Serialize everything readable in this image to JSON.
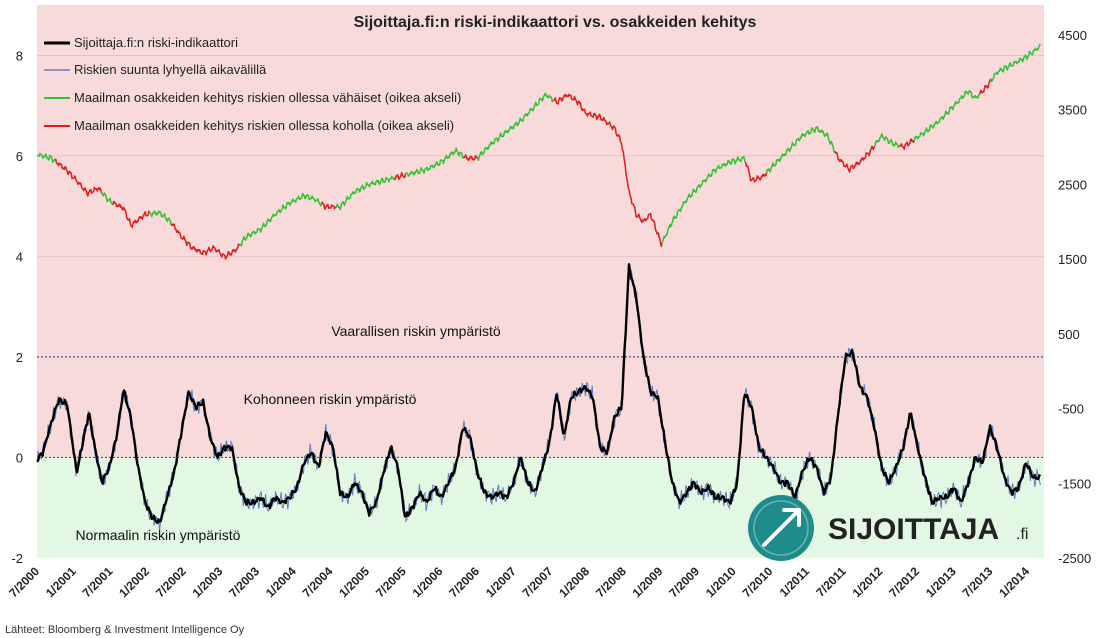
{
  "chart_data": {
    "type": "line",
    "title": "Sijoittaja.fi:n riski-indikaattori  vs. osakkeiden kehitys",
    "left_axis": {
      "ticks": [
        "8",
        "6",
        "4",
        "2",
        "0",
        "-2"
      ],
      "ylim": [
        -2,
        9
      ]
    },
    "right_axis": {
      "ticks": [
        "4500",
        "3500",
        "2500",
        "1500",
        "500",
        "-500",
        "-1500",
        "-2500"
      ],
      "ylim": [
        -2500,
        4900
      ]
    },
    "x_ticks": [
      "7/2000",
      "1/2001",
      "7/2001",
      "1/2002",
      "7/2002",
      "1/2003",
      "7/2003",
      "1/2004",
      "7/2004",
      "1/2005",
      "7/2005",
      "1/2006",
      "7/2006",
      "1/2007",
      "7/2007",
      "1/2008",
      "7/2008",
      "1/2009",
      "7/2009",
      "1/2010",
      "7/2010",
      "1/2011",
      "7/2011",
      "1/2012",
      "7/2012",
      "1/2013",
      "7/2013",
      "1/2014"
    ],
    "x_range": [
      2000.5,
      2014.45
    ],
    "danger_threshold": 2,
    "zero_line": 0,
    "legend": [
      {
        "label": "Sijoittaja.fi:n riski-indikaattori",
        "color": "#000000"
      },
      {
        "label": "Riskien suunta lyhyellä aikavälillä",
        "color": "#5a7fc0"
      },
      {
        "label": "Maailman osakkeiden kehitys riskien ollessa vähäiset (oikea akseli)",
        "color": "#33c233"
      },
      {
        "label": "Maailman osakkeiden kehitys riskien ollessa koholla (oikea akseli)",
        "color": "#e31b1b"
      }
    ],
    "annotations": {
      "danger": "Vaarallisen riskin ympäristö",
      "elevated": "Kohonneen riskin ympäristö",
      "normal": "Normaalin riskin ympäristö"
    },
    "series": [
      {
        "name": "Sijoittaja.fi:n riski-indikaattori",
        "axis": "left",
        "points": [
          [
            2000.5,
            -0.05
          ],
          [
            2000.58,
            0.1
          ],
          [
            2000.7,
            0.7
          ],
          [
            2000.8,
            1.15
          ],
          [
            2000.92,
            1.05
          ],
          [
            2001.0,
            0.2
          ],
          [
            2001.05,
            -0.3
          ],
          [
            2001.12,
            0.2
          ],
          [
            2001.22,
            0.9
          ],
          [
            2001.3,
            0.2
          ],
          [
            2001.4,
            -0.5
          ],
          [
            2001.5,
            -0.2
          ],
          [
            2001.6,
            0.4
          ],
          [
            2001.7,
            1.35
          ],
          [
            2001.8,
            0.8
          ],
          [
            2001.9,
            -0.2
          ],
          [
            2002.0,
            -0.9
          ],
          [
            2002.1,
            -1.2
          ],
          [
            2002.2,
            -1.3
          ],
          [
            2002.3,
            -0.8
          ],
          [
            2002.4,
            -0.3
          ],
          [
            2002.5,
            0.5
          ],
          [
            2002.6,
            1.3
          ],
          [
            2002.7,
            1.0
          ],
          [
            2002.8,
            1.1
          ],
          [
            2002.9,
            0.4
          ],
          [
            2003.0,
            0.0
          ],
          [
            2003.1,
            0.2
          ],
          [
            2003.2,
            0.2
          ],
          [
            2003.3,
            -0.6
          ],
          [
            2003.4,
            -0.9
          ],
          [
            2003.5,
            -0.9
          ],
          [
            2003.6,
            -0.8
          ],
          [
            2003.7,
            -1.0
          ],
          [
            2003.8,
            -0.8
          ],
          [
            2003.9,
            -0.9
          ],
          [
            2004.0,
            -0.8
          ],
          [
            2004.1,
            -0.6
          ],
          [
            2004.2,
            -0.1
          ],
          [
            2004.3,
            0.1
          ],
          [
            2004.4,
            -0.2
          ],
          [
            2004.5,
            0.5
          ],
          [
            2004.6,
            0.2
          ],
          [
            2004.7,
            -0.7
          ],
          [
            2004.8,
            -0.8
          ],
          [
            2004.9,
            -0.5
          ],
          [
            2005.0,
            -0.7
          ],
          [
            2005.1,
            -1.1
          ],
          [
            2005.2,
            -0.9
          ],
          [
            2005.3,
            -0.3
          ],
          [
            2005.4,
            0.2
          ],
          [
            2005.5,
            -0.2
          ],
          [
            2005.6,
            -1.2
          ],
          [
            2005.7,
            -1.0
          ],
          [
            2005.8,
            -0.7
          ],
          [
            2005.9,
            -0.9
          ],
          [
            2006.0,
            -0.6
          ],
          [
            2006.1,
            -0.8
          ],
          [
            2006.2,
            -0.5
          ],
          [
            2006.3,
            -0.2
          ],
          [
            2006.4,
            0.6
          ],
          [
            2006.5,
            0.4
          ],
          [
            2006.6,
            -0.3
          ],
          [
            2006.7,
            -0.7
          ],
          [
            2006.8,
            -0.8
          ],
          [
            2006.9,
            -0.7
          ],
          [
            2007.0,
            -0.8
          ],
          [
            2007.1,
            -0.5
          ],
          [
            2007.2,
            0.0
          ],
          [
            2007.3,
            -0.5
          ],
          [
            2007.4,
            -0.7
          ],
          [
            2007.5,
            -0.2
          ],
          [
            2007.6,
            0.3
          ],
          [
            2007.7,
            1.3
          ],
          [
            2007.8,
            0.4
          ],
          [
            2007.9,
            1.2
          ],
          [
            2008.0,
            1.3
          ],
          [
            2008.1,
            1.4
          ],
          [
            2008.2,
            1.2
          ],
          [
            2008.3,
            0.2
          ],
          [
            2008.4,
            0.1
          ],
          [
            2008.5,
            0.8
          ],
          [
            2008.6,
            1.0
          ],
          [
            2008.7,
            3.8
          ],
          [
            2008.8,
            3.2
          ],
          [
            2008.9,
            2.0
          ],
          [
            2009.0,
            1.3
          ],
          [
            2009.1,
            1.2
          ],
          [
            2009.2,
            0.3
          ],
          [
            2009.3,
            -0.5
          ],
          [
            2009.4,
            -0.9
          ],
          [
            2009.5,
            -0.7
          ],
          [
            2009.6,
            -0.5
          ],
          [
            2009.7,
            -0.7
          ],
          [
            2009.8,
            -0.6
          ],
          [
            2009.9,
            -0.8
          ],
          [
            2010.0,
            -0.8
          ],
          [
            2010.1,
            -0.9
          ],
          [
            2010.2,
            -0.5
          ],
          [
            2010.3,
            1.3
          ],
          [
            2010.4,
            1.0
          ],
          [
            2010.5,
            0.2
          ],
          [
            2010.6,
            0.0
          ],
          [
            2010.7,
            -0.2
          ],
          [
            2010.8,
            -0.5
          ],
          [
            2010.9,
            -0.5
          ],
          [
            2011.0,
            -0.8
          ],
          [
            2011.1,
            -0.3
          ],
          [
            2011.2,
            0.0
          ],
          [
            2011.3,
            -0.2
          ],
          [
            2011.4,
            -0.7
          ],
          [
            2011.5,
            -0.4
          ],
          [
            2011.6,
            0.9
          ],
          [
            2011.7,
            2.0
          ],
          [
            2011.8,
            2.1
          ],
          [
            2011.9,
            1.4
          ],
          [
            2012.0,
            1.2
          ],
          [
            2012.1,
            0.6
          ],
          [
            2012.2,
            -0.2
          ],
          [
            2012.3,
            -0.5
          ],
          [
            2012.4,
            -0.2
          ],
          [
            2012.5,
            0.2
          ],
          [
            2012.6,
            0.9
          ],
          [
            2012.7,
            0.2
          ],
          [
            2012.8,
            -0.4
          ],
          [
            2012.9,
            -0.9
          ],
          [
            2013.0,
            -0.8
          ],
          [
            2013.1,
            -0.8
          ],
          [
            2013.2,
            -0.6
          ],
          [
            2013.3,
            -0.9
          ],
          [
            2013.4,
            -0.5
          ],
          [
            2013.5,
            0.0
          ],
          [
            2013.6,
            -0.1
          ],
          [
            2013.7,
            0.6
          ],
          [
            2013.8,
            0.2
          ],
          [
            2013.9,
            -0.4
          ],
          [
            2014.0,
            -0.7
          ],
          [
            2014.1,
            -0.6
          ],
          [
            2014.2,
            -0.1
          ],
          [
            2014.3,
            -0.4
          ],
          [
            2014.4,
            -0.4
          ]
        ]
      },
      {
        "name": "Maailman osakkeiden kehitys",
        "axis": "right",
        "points": [
          [
            2000.5,
            2900
          ],
          [
            2000.7,
            2850
          ],
          [
            2000.9,
            2700
          ],
          [
            2001.05,
            2550
          ],
          [
            2001.2,
            2380
          ],
          [
            2001.35,
            2450
          ],
          [
            2001.5,
            2280
          ],
          [
            2001.7,
            2180
          ],
          [
            2001.8,
            1950
          ],
          [
            2002.0,
            2100
          ],
          [
            2002.2,
            2120
          ],
          [
            2002.35,
            2000
          ],
          [
            2002.5,
            1800
          ],
          [
            2002.65,
            1650
          ],
          [
            2002.8,
            1580
          ],
          [
            2002.95,
            1650
          ],
          [
            2003.1,
            1530
          ],
          [
            2003.25,
            1620
          ],
          [
            2003.4,
            1800
          ],
          [
            2003.6,
            1900
          ],
          [
            2003.8,
            2100
          ],
          [
            2004.0,
            2250
          ],
          [
            2004.2,
            2350
          ],
          [
            2004.35,
            2300
          ],
          [
            2004.5,
            2200
          ],
          [
            2004.7,
            2200
          ],
          [
            2004.9,
            2400
          ],
          [
            2005.1,
            2500
          ],
          [
            2005.3,
            2550
          ],
          [
            2005.5,
            2600
          ],
          [
            2005.7,
            2650
          ],
          [
            2005.9,
            2700
          ],
          [
            2006.1,
            2800
          ],
          [
            2006.3,
            2950
          ],
          [
            2006.45,
            2850
          ],
          [
            2006.6,
            2850
          ],
          [
            2006.8,
            3050
          ],
          [
            2007.0,
            3200
          ],
          [
            2007.2,
            3350
          ],
          [
            2007.4,
            3550
          ],
          [
            2007.55,
            3700
          ],
          [
            2007.7,
            3600
          ],
          [
            2007.85,
            3700
          ],
          [
            2008.0,
            3600
          ],
          [
            2008.1,
            3450
          ],
          [
            2008.3,
            3400
          ],
          [
            2008.5,
            3250
          ],
          [
            2008.6,
            3050
          ],
          [
            2008.7,
            2400
          ],
          [
            2008.8,
            2100
          ],
          [
            2008.9,
            2000
          ],
          [
            2009.0,
            2100
          ],
          [
            2009.15,
            1700
          ],
          [
            2009.3,
            2000
          ],
          [
            2009.5,
            2300
          ],
          [
            2009.7,
            2500
          ],
          [
            2009.9,
            2700
          ],
          [
            2010.1,
            2800
          ],
          [
            2010.3,
            2850
          ],
          [
            2010.4,
            2550
          ],
          [
            2010.55,
            2600
          ],
          [
            2010.7,
            2750
          ],
          [
            2010.9,
            2950
          ],
          [
            2011.1,
            3150
          ],
          [
            2011.3,
            3250
          ],
          [
            2011.45,
            3150
          ],
          [
            2011.6,
            2850
          ],
          [
            2011.75,
            2700
          ],
          [
            2011.9,
            2800
          ],
          [
            2012.05,
            2950
          ],
          [
            2012.2,
            3150
          ],
          [
            2012.35,
            3050
          ],
          [
            2012.5,
            3000
          ],
          [
            2012.65,
            3100
          ],
          [
            2012.8,
            3200
          ],
          [
            2013.0,
            3350
          ],
          [
            2013.2,
            3550
          ],
          [
            2013.4,
            3750
          ],
          [
            2013.5,
            3650
          ],
          [
            2013.65,
            3800
          ],
          [
            2013.8,
            4000
          ],
          [
            2014.0,
            4100
          ],
          [
            2014.2,
            4200
          ],
          [
            2014.4,
            4350
          ]
        ],
        "elevated_risk_periods": [
          [
            2000.75,
            2001.4
          ],
          [
            2001.55,
            2002.05
          ],
          [
            2002.35,
            2003.3
          ],
          [
            2004.45,
            2004.65
          ],
          [
            2005.45,
            2005.6
          ],
          [
            2006.4,
            2006.6
          ],
          [
            2007.65,
            2009.15
          ],
          [
            2010.3,
            2010.6
          ],
          [
            2011.55,
            2012.1
          ],
          [
            2012.45,
            2012.65
          ],
          [
            2013.55,
            2013.7
          ]
        ]
      }
    ]
  },
  "source": "Lähteet: Bloomberg & Investment  Intelligence Oy",
  "logo": {
    "text": "SIJOITTAJA",
    "suffix": ".fi",
    "color": "#1f8c8c"
  }
}
